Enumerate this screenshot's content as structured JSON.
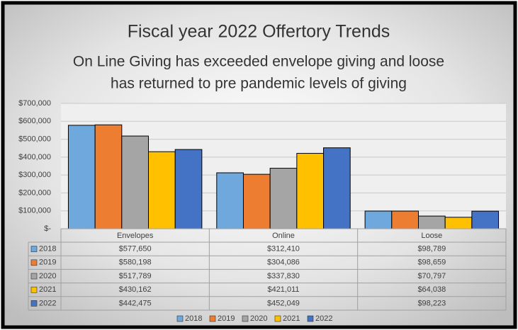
{
  "chart_data": {
    "type": "bar",
    "title": "Fiscal year 2022 Offertory Trends",
    "subtitle": [
      "On Line Giving has exceeded envelope giving and loose",
      "has returned to pre pandemic levels of giving"
    ],
    "categories": [
      "Envelopes",
      "Online",
      "Loose"
    ],
    "series": [
      {
        "name": "2018",
        "color": "#6fa8dc",
        "values": [
          577650,
          312410,
          98789
        ],
        "value_labels": [
          "$577,650",
          "$312,410",
          "$98,789"
        ]
      },
      {
        "name": "2019",
        "color": "#ed7d31",
        "values": [
          580198,
          304086,
          98659
        ],
        "value_labels": [
          "$580,198",
          "$304,086",
          "$98,659"
        ]
      },
      {
        "name": "2020",
        "color": "#a5a5a5",
        "values": [
          517789,
          337830,
          70797
        ],
        "value_labels": [
          "$517,789",
          "$337,830",
          "$70,797"
        ]
      },
      {
        "name": "2021",
        "color": "#ffc000",
        "values": [
          430162,
          421011,
          64038
        ],
        "value_labels": [
          "$430,162",
          "$421,011",
          "$64,038"
        ]
      },
      {
        "name": "2022",
        "color": "#4472c4",
        "values": [
          442475,
          452049,
          98223
        ],
        "value_labels": [
          "$442,475",
          "$452,049",
          "$98,223"
        ]
      }
    ],
    "ylim": [
      0,
      700000
    ],
    "yticks": [
      {
        "value": 0,
        "label": "$-"
      },
      {
        "value": 100000,
        "label": "$100,000"
      },
      {
        "value": 200000,
        "label": "$200,000"
      },
      {
        "value": 300000,
        "label": "$300,000"
      },
      {
        "value": 400000,
        "label": "$400,000"
      },
      {
        "value": 500000,
        "label": "$500,000"
      },
      {
        "value": 600000,
        "label": "$600,000"
      },
      {
        "value": 700000,
        "label": "$700,000"
      }
    ],
    "grid": true,
    "legend": "bottom"
  }
}
